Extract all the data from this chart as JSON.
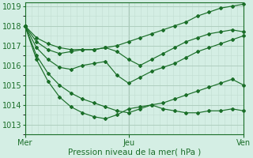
{
  "xlabel": "Pression niveau de la mer( hPa )",
  "bg_color": "#d4eee4",
  "line_color": "#1a6e28",
  "grid_minor_color": "#c2ddd2",
  "grid_major_color": "#aacaba",
  "ylim": [
    1012.5,
    1019.2
  ],
  "yticks": [
    1013,
    1014,
    1015,
    1016,
    1017,
    1018,
    1019
  ],
  "xtick_labels": [
    "Mer",
    "Jeu",
    "Ven"
  ],
  "lines": [
    [
      1018.0,
      1017.4,
      1017.1,
      1016.9,
      1016.8,
      1016.8,
      1016.8,
      1016.9,
      1017.0,
      1017.2,
      1017.4,
      1017.6,
      1017.8,
      1018.0,
      1018.2,
      1018.5,
      1018.7,
      1018.9,
      1019.0,
      1019.1
    ],
    [
      1018.0,
      1017.2,
      1016.8,
      1016.6,
      1016.7,
      1016.8,
      1016.8,
      1016.9,
      1016.7,
      1016.3,
      1016.0,
      1016.3,
      1016.6,
      1016.9,
      1017.2,
      1017.4,
      1017.6,
      1017.7,
      1017.8,
      1017.7
    ],
    [
      1018.0,
      1016.9,
      1016.3,
      1015.9,
      1015.8,
      1016.0,
      1016.1,
      1016.2,
      1015.5,
      1015.1,
      1015.4,
      1015.7,
      1015.9,
      1016.1,
      1016.4,
      1016.7,
      1016.9,
      1017.1,
      1017.3,
      1017.5
    ],
    [
      1018.0,
      1016.5,
      1015.6,
      1015.0,
      1014.6,
      1014.3,
      1014.1,
      1013.9,
      1013.7,
      1013.6,
      1013.8,
      1014.0,
      1014.1,
      1014.3,
      1014.5,
      1014.7,
      1014.9,
      1015.1,
      1015.3,
      1015.0
    ],
    [
      1018.0,
      1016.3,
      1015.2,
      1014.4,
      1013.9,
      1013.6,
      1013.4,
      1013.3,
      1013.5,
      1013.8,
      1013.9,
      1014.0,
      1013.8,
      1013.7,
      1013.6,
      1013.6,
      1013.7,
      1013.7,
      1013.8,
      1013.7
    ]
  ],
  "n_points": 20,
  "jeu_idx": 9,
  "ven_idx": 19
}
